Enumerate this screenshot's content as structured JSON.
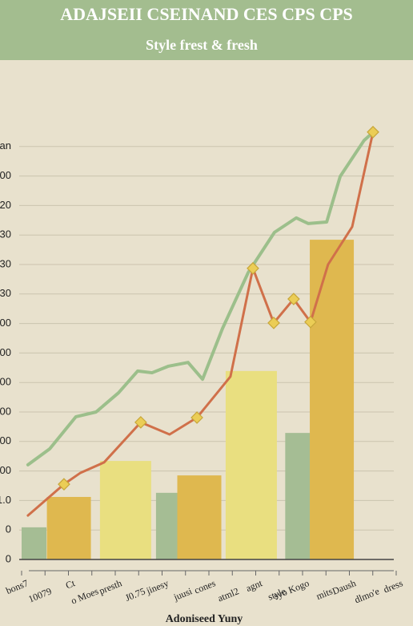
{
  "chart_data": {
    "type": "combo",
    "title": "ADAJSEII CSEINAND CES CPS CPS",
    "subtitle": "Style frest & fresh",
    "x_label": "Adoniseed Yuny",
    "xlim": [
      0,
      16
    ],
    "ylim": [
      0,
      15
    ],
    "grid": true,
    "yticks": [
      0,
      {
        "value": 1,
        "label": "0"
      },
      {
        "value": 2,
        "label": "1.0"
      },
      {
        "value": 3,
        "label": "00"
      },
      {
        "value": 4,
        "label": "00"
      },
      {
        "value": 5,
        "label": "00"
      },
      {
        "value": 6,
        "label": "00"
      },
      {
        "value": 7,
        "label": "00"
      },
      {
        "value": 8,
        "label": "00"
      },
      {
        "value": 9,
        "label": "30"
      },
      {
        "value": 10,
        "label": "30"
      },
      {
        "value": 11,
        "label": "30"
      },
      {
        "value": 12,
        "label": "20"
      },
      {
        "value": 13,
        "label": "00"
      },
      {
        "value": 14,
        "label": "an"
      }
    ],
    "xticks": [
      {
        "value": 0,
        "label": "bons7"
      },
      {
        "value": 1,
        "label": "10079"
      },
      {
        "value": 2,
        "label": "Ct"
      },
      {
        "value": 3,
        "label": "o Moes"
      },
      {
        "value": 4,
        "label": "presth"
      },
      {
        "value": 5,
        "label": "J0.75"
      },
      {
        "value": 6,
        "label": "jinesy"
      },
      {
        "value": 7,
        "label": "juusi"
      },
      {
        "value": 8,
        "label": "cones"
      },
      {
        "value": 9,
        "label": "atml2"
      },
      {
        "value": 10,
        "label": "agnt"
      },
      {
        "value": 11,
        "label": "style"
      },
      {
        "value": 12,
        "label": "syo Kogo"
      },
      {
        "value": 13,
        "label": "mits"
      },
      {
        "value": 14,
        "label": "Daush"
      },
      {
        "value": 15,
        "label": "dlmo'e"
      },
      {
        "value": 16,
        "label": "dress"
      }
    ],
    "bars": [
      {
        "color": "#a5bd94",
        "x": [
          0.53,
          6.27,
          11.79
        ],
        "values": [
          1.09,
          2.26,
          4.29
        ]
      },
      {
        "color": "#dfb84f",
        "x": [
          2.02,
          7.59,
          13.25
        ],
        "values": [
          2.12,
          2.85,
          10.84
        ]
      },
      {
        "color": "#e9df80",
        "x": [
          4.44,
          9.81
        ],
        "values": [
          3.34,
          6.39
        ]
      }
    ],
    "lines": [
      {
        "color": "#9cbf8b",
        "x": [
          0.27,
          1.2,
          2.32,
          3.18,
          4.14,
          4.96,
          5.57,
          6.26,
          7.11,
          7.73,
          8.58,
          9.68,
          10.8,
          11.73,
          12.24,
          13.03,
          13.61,
          14.63,
          15.01
        ],
        "values": [
          3.21,
          3.75,
          4.84,
          5.0,
          5.65,
          6.39,
          6.33,
          6.55,
          6.68,
          6.11,
          7.83,
          9.73,
          11.09,
          11.58,
          11.39,
          11.44,
          12.99,
          14.21,
          14.48
        ]
      },
      {
        "color": "#d0704a",
        "x": [
          0.27,
          1.81,
          2.5,
          3.52,
          5.09,
          6.32,
          7.49,
          8.92,
          9.88,
          10.77,
          11.62,
          12.34,
          13.09,
          14.12,
          15.01
        ],
        "values": [
          1.49,
          2.55,
          2.93,
          3.29,
          4.65,
          4.24,
          4.81,
          6.2,
          9.87,
          8.02,
          8.83,
          8.05,
          10.0,
          11.28,
          14.49
        ]
      }
    ],
    "points": {
      "color": "#ebcd56",
      "x": [
        1.81,
        5.09,
        7.49,
        9.88,
        10.77,
        11.62,
        12.34,
        15.01
      ],
      "values": [
        2.55,
        4.65,
        4.81,
        9.87,
        8.02,
        8.83,
        8.05,
        14.49
      ]
    }
  }
}
